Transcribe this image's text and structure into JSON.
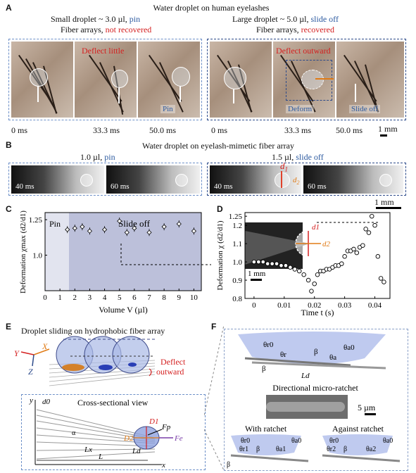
{
  "panel_labels": {
    "a": "A",
    "b": "B",
    "c": "C",
    "d": "D",
    "e": "E",
    "f": "F"
  },
  "panel_a": {
    "title": "Water droplet on human eyelashes",
    "left_header_1": "Small droplet ~ 3.0 µl, ",
    "left_header_1_colored": "pin",
    "left_header_2": "Fiber arrays, ",
    "left_header_2_colored": "not recovered",
    "right_header_1": "Large droplet ~ 5.0 µl, ",
    "right_header_1_colored": "slide off",
    "right_header_2": "Fiber arrays, ",
    "right_header_2_colored": "recovered",
    "left_annot": "Deflect little",
    "left_state": "Pin",
    "right_annot": "Deflect outward",
    "right_state_1": "Deform",
    "right_state_2": "Slide off",
    "times_left": [
      "0 ms",
      "33.3 ms",
      "50.0 ms"
    ],
    "times_right": [
      "0 ms",
      "33.3 ms",
      "50.0 ms"
    ],
    "scale": "1 mm"
  },
  "panel_b": {
    "title": "Water droplet on eyelash-mimetic fiber array",
    "left_header": "1.0 µl, ",
    "left_header_colored": "pin",
    "right_header": "1.5 µl, ",
    "right_header_colored": "slide off",
    "times": [
      "40 ms",
      "60 ms",
      "40 ms",
      "60 ms"
    ],
    "d1": "d",
    "d1_sub": "1",
    "d2": "d",
    "d2_sub": "2",
    "scale": "1 mm"
  },
  "panel_c": {
    "region_pin": "Pin",
    "region_slide": "Slide off",
    "ylabel": "Deformation χmax (d2/d1)",
    "xlabel": "Volume V (µl)",
    "xticks": [
      "0",
      "1",
      "2",
      "3",
      "4",
      "5",
      "6",
      "7",
      "8",
      "9",
      "10"
    ],
    "yticks": [
      "1.0",
      "1.25"
    ]
  },
  "panel_d": {
    "ylabel": "Deformation χ (d2/d1)",
    "xlabel": "Time t (s)",
    "xticks": [
      "0",
      "0.01",
      "0.02",
      "0.03",
      "0.04"
    ],
    "yticks": [
      "0.8",
      "0.9",
      "1.0",
      "1.1",
      "1.2",
      "1.25"
    ],
    "scale": "1 mm",
    "d1": "d1",
    "d2": "d2"
  },
  "panel_e": {
    "title": "Droplet sliding on hydrophobic fiber array",
    "axis_y": "Y",
    "axis_x": "X",
    "axis_z": "Z",
    "deflect_1": "Deflect",
    "deflect_2": "outward",
    "cross_title": "Cross-sectional view",
    "y": "y",
    "x": "x",
    "d0": "d0",
    "alpha": "α",
    "Lx": "Lx",
    "L": "L",
    "Ld": "Ld",
    "D1": "D1",
    "D2": "D2",
    "Fp": "Fp",
    "Fe": "Fe"
  },
  "panel_f": {
    "theta_r0": "θr0",
    "theta_a0": "θa0",
    "theta_r": "θr",
    "theta_a": "θa",
    "beta": "β",
    "Ld": "Ld",
    "ratchet_title": "Directional micro-ratchet",
    "scale": "5 µm",
    "with": "With ratchet",
    "against": "Against ratchet",
    "theta_r1": "θr1",
    "theta_a1": "θa1",
    "theta_r2": "θr2",
    "theta_a2": "θa2"
  },
  "chart_data": [
    {
      "type": "scatter",
      "title": "",
      "xlabel": "Volume V (µl)",
      "ylabel": "Deformation χmax (d2/d1)",
      "xlim": [
        0,
        10.5
      ],
      "ylim": [
        0.75,
        1.3
      ],
      "x": [
        1.5,
        2.0,
        2.5,
        3.0,
        4.0,
        5.0,
        5.5,
        6.0,
        7.0,
        8.0,
        9.0,
        10.0
      ],
      "values": [
        1.18,
        1.19,
        1.2,
        1.17,
        1.18,
        1.24,
        1.16,
        1.19,
        1.16,
        1.2,
        1.22,
        1.17
      ]
    },
    {
      "type": "scatter",
      "title": "",
      "xlabel": "Time t (s)",
      "ylabel": "Deformation χ (d2/d1)",
      "xlim": [
        -0.003,
        0.045
      ],
      "ylim": [
        0.8,
        1.27
      ],
      "x": [
        0.0,
        0.0015,
        0.003,
        0.0045,
        0.006,
        0.0075,
        0.009,
        0.0105,
        0.012,
        0.0135,
        0.015,
        0.0165,
        0.018,
        0.019,
        0.02,
        0.021,
        0.022,
        0.023,
        0.024,
        0.025,
        0.026,
        0.027,
        0.028,
        0.029,
        0.03,
        0.031,
        0.032,
        0.033,
        0.034,
        0.035,
        0.036,
        0.037,
        0.038,
        0.039,
        0.04,
        0.041,
        0.042,
        0.043
      ],
      "values": [
        1.0,
        1.0,
        1.0,
        0.99,
        0.99,
        0.99,
        0.98,
        0.98,
        0.97,
        0.96,
        0.95,
        0.93,
        0.9,
        0.84,
        0.88,
        0.93,
        0.95,
        0.95,
        0.96,
        0.96,
        0.97,
        0.98,
        0.98,
        0.99,
        1.03,
        1.06,
        1.06,
        1.07,
        1.05,
        1.08,
        1.09,
        1.18,
        1.16,
        1.25,
        1.2,
        1.03,
        0.91,
        0.89
      ]
    }
  ]
}
